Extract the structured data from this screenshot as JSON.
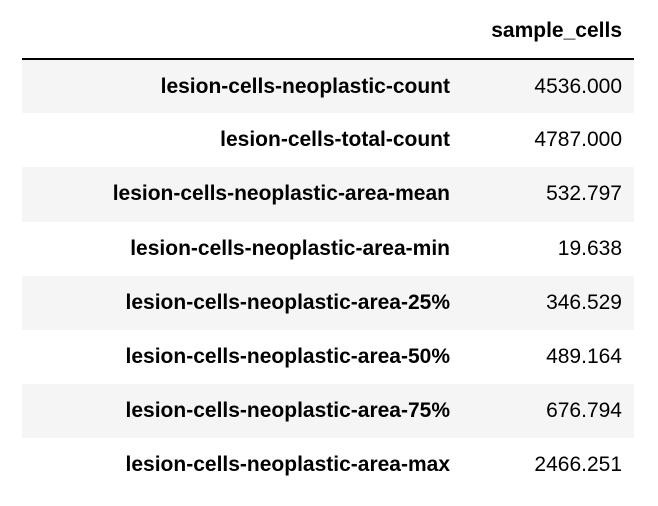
{
  "table": {
    "column_header": "sample_cells",
    "rows": [
      {
        "label": "lesion-cells-neoplastic-count",
        "value": "4536.000"
      },
      {
        "label": "lesion-cells-total-count",
        "value": "4787.000"
      },
      {
        "label": "lesion-cells-neoplastic-area-mean",
        "value": "532.797"
      },
      {
        "label": "lesion-cells-neoplastic-area-min",
        "value": "19.638"
      },
      {
        "label": "lesion-cells-neoplastic-area-25%",
        "value": "346.529"
      },
      {
        "label": "lesion-cells-neoplastic-area-50%",
        "value": "489.164"
      },
      {
        "label": "lesion-cells-neoplastic-area-75%",
        "value": "676.794"
      },
      {
        "label": "lesion-cells-neoplastic-area-max",
        "value": "2466.251"
      }
    ]
  }
}
